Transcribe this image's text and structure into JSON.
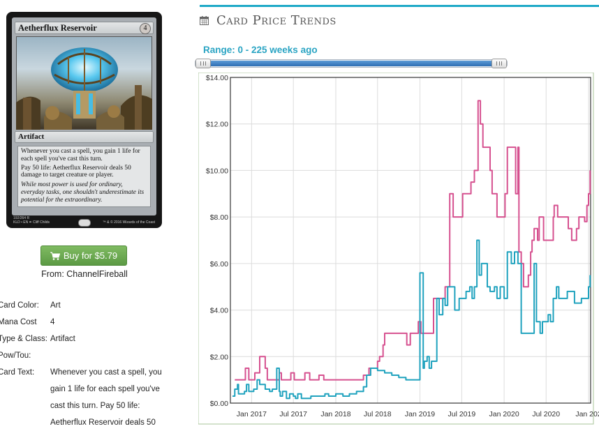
{
  "card": {
    "name": "Aetherflux Reservoir",
    "mana_cost_symbol": "4",
    "type_line": "Artifact",
    "rules_text": [
      "Whenever you cast a spell, you gain 1 life for each spell you've cast this turn.",
      "Pay 50 life: Aetherflux Reservoir deals 50 damage to target creature or player."
    ],
    "flavor_text": "While most power is used for ordinary, everyday tasks, one shouldn't underestimate its potential for the extraordinary.",
    "collector_line_1": "192/264 R",
    "collector_line_2": "KLD • EN ✒ Cliff Childs",
    "copyright": "™ & © 2016 Wizards of the Coast"
  },
  "buy": {
    "label": "Buy for $5.79",
    "from": "From: ChannelFireball",
    "icon": "shopping-cart-icon"
  },
  "info": {
    "card_color_label": "Card Color:",
    "card_color_value": "Art",
    "mana_cost_label": "Mana Cost",
    "mana_cost_value": "4",
    "type_class_label": "Type & Class:",
    "type_class_value": "Artifact",
    "pow_tou_label": "Pow/Tou:",
    "pow_tou_value": "",
    "card_text_label": "Card Text:",
    "card_text_value": "Whenever you cast a spell, you gain 1 life for each spell you've cast this turn. Pay 50 life: Aetherflux Reservoir deals 50"
  },
  "panel": {
    "title": "Card Price Trends",
    "title_icon": "calendar-icon",
    "range_label": "Range: 0 - 225 weeks ago",
    "accent_color": "#1da9c7"
  },
  "slider": {
    "min_weeks": 0,
    "max_weeks": 225,
    "low_fraction": 0.0,
    "high_fraction": 1.0
  },
  "chart_data": {
    "type": "line",
    "title": "",
    "xlabel": "",
    "ylabel": "",
    "ylim": [
      0,
      14
    ],
    "y_ticks": [
      "$0.00",
      "$2.00",
      "$4.00",
      "$6.00",
      "$8.00",
      "$10.00",
      "$12.00",
      "$14.00"
    ],
    "x_tick_labels": [
      "Jan 2017",
      "Jul 2017",
      "Jan 2018",
      "Jul 2018",
      "Jan 2019",
      "Jul 2019",
      "Jan 2020",
      "Jul 2020",
      "Jan 202"
    ],
    "x_range": [
      "2016-10",
      "2021-01"
    ],
    "grid": true,
    "series": [
      {
        "color": "#d6508f",
        "x": [
          "2016-10-20",
          "2016-11-10",
          "2016-11-25",
          "2016-12-05",
          "2016-12-20",
          "2017-01-05",
          "2017-01-15",
          "2017-02-05",
          "2017-02-20",
          "2017-03-01",
          "2017-03-10",
          "2017-03-20",
          "2017-04-05",
          "2017-04-20",
          "2017-05-01",
          "2017-05-10",
          "2017-05-20",
          "2017-06-10",
          "2017-06-20",
          "2017-07-05",
          "2017-07-15",
          "2017-08-10",
          "2017-08-20",
          "2017-09-10",
          "2017-09-15",
          "2017-10-10",
          "2017-10-20",
          "2017-11-10",
          "2017-12-01",
          "2018-01-10",
          "2018-02-10",
          "2018-03-01",
          "2018-04-01",
          "2018-05-01",
          "2018-05-25",
          "2018-06-10",
          "2018-07-01",
          "2018-07-10",
          "2018-07-25",
          "2018-08-01",
          "2018-08-20",
          "2018-09-10",
          "2018-09-20",
          "2018-10-10",
          "2018-10-25",
          "2018-11-05",
          "2018-11-15",
          "2018-11-20",
          "2018-12-05",
          "2018-12-15",
          "2018-12-25",
          "2019-01-05",
          "2019-01-15",
          "2019-02-10",
          "2019-03-01",
          "2019-03-10",
          "2019-03-20",
          "2019-03-25",
          "2019-04-05",
          "2019-04-10",
          "2019-04-20",
          "2019-05-10",
          "2019-05-25",
          "2019-06-10",
          "2019-06-25",
          "2019-07-05",
          "2019-07-25",
          "2019-08-10",
          "2019-08-25",
          "2019-09-01",
          "2019-09-05",
          "2019-09-10",
          "2019-09-20",
          "2019-10-01",
          "2019-10-20",
          "2019-11-01",
          "2019-11-10",
          "2019-12-01",
          "2019-12-10",
          "2019-12-20",
          "2020-01-05",
          "2020-01-15",
          "2020-02-01",
          "2020-02-10",
          "2020-02-20",
          "2020-03-01",
          "2020-03-05",
          "2020-03-15",
          "2020-03-25",
          "2020-04-01",
          "2020-04-15",
          "2020-04-25",
          "2020-05-01",
          "2020-05-10",
          "2020-05-25",
          "2020-06-01",
          "2020-06-10",
          "2020-06-20",
          "2020-07-05",
          "2020-07-15",
          "2020-08-01",
          "2020-08-05",
          "2020-08-20",
          "2020-09-05",
          "2020-09-15",
          "2020-10-01",
          "2020-10-05",
          "2020-10-20",
          "2020-11-01",
          "2020-11-10",
          "2020-11-20",
          "2020-12-01",
          "2020-12-15",
          "2020-12-25",
          "2021-01-01",
          "2021-01-08"
        ],
        "values": [
          1.0,
          1.0,
          1.0,
          1.5,
          1.0,
          1.0,
          1.3,
          2.0,
          2.0,
          1.5,
          1.0,
          1.0,
          1.0,
          1.0,
          1.3,
          1.0,
          1.0,
          1.0,
          1.3,
          1.0,
          1.0,
          1.0,
          1.3,
          1.0,
          1.0,
          1.0,
          1.2,
          1.0,
          1.0,
          1.0,
          1.0,
          1.0,
          1.0,
          1.2,
          1.5,
          1.5,
          1.8,
          2.0,
          2.5,
          3.0,
          3.0,
          3.0,
          3.0,
          3.0,
          3.0,
          2.5,
          2.5,
          3.0,
          3.0,
          3.0,
          3.5,
          3.0,
          3.0,
          3.0,
          4.5,
          4.5,
          4.5,
          4.5,
          4.5,
          4.5,
          5.0,
          9.0,
          8.0,
          8.0,
          8.0,
          9.0,
          9.0,
          9.5,
          10.0,
          10.0,
          10.0,
          13.0,
          12.0,
          11.0,
          11.0,
          10.0,
          9.0,
          8.0,
          8.0,
          8.0,
          9.0,
          11.0,
          11.0,
          11.0,
          9.0,
          11.0,
          6.5,
          6.0,
          5.0,
          5.0,
          5.5,
          6.5,
          7.0,
          7.5,
          7.0,
          8.0,
          8.0,
          7.0,
          7.0,
          7.0,
          8.0,
          8.5,
          8.0,
          8.0,
          8.0,
          8.0,
          7.5,
          7.0,
          7.0,
          7.5,
          8.0,
          8.0,
          7.8,
          8.5,
          9.0,
          10.0
        ]
      },
      {
        "color": "#1fa2be",
        "x": [
          "2016-10-10",
          "2016-10-20",
          "2016-11-01",
          "2016-11-05",
          "2016-11-20",
          "2016-12-01",
          "2016-12-10",
          "2016-12-20",
          "2017-01-01",
          "2017-01-10",
          "2017-01-25",
          "2017-02-05",
          "2017-02-20",
          "2017-03-01",
          "2017-03-10",
          "2017-03-20",
          "2017-04-01",
          "2017-04-10",
          "2017-04-20",
          "2017-05-01",
          "2017-05-05",
          "2017-05-15",
          "2017-06-01",
          "2017-06-15",
          "2017-07-01",
          "2017-07-10",
          "2017-07-20",
          "2017-08-05",
          "2017-08-15",
          "2017-09-01",
          "2017-09-15",
          "2017-10-01",
          "2017-10-15",
          "2017-11-01",
          "2017-11-15",
          "2017-12-01",
          "2017-12-15",
          "2018-01-01",
          "2018-02-01",
          "2018-03-01",
          "2018-04-01",
          "2018-05-01",
          "2018-05-15",
          "2018-06-01",
          "2018-07-01",
          "2018-08-01",
          "2018-09-01",
          "2018-10-01",
          "2018-11-01",
          "2018-12-01",
          "2019-01-01",
          "2019-01-15",
          "2019-01-20",
          "2019-02-01",
          "2019-02-10",
          "2019-02-20",
          "2019-03-01",
          "2019-03-15",
          "2019-03-25",
          "2019-04-10",
          "2019-04-20",
          "2019-05-01",
          "2019-05-20",
          "2019-06-01",
          "2019-06-20",
          "2019-07-05",
          "2019-07-20",
          "2019-08-05",
          "2019-08-15",
          "2019-08-25",
          "2019-09-01",
          "2019-09-05",
          "2019-09-15",
          "2019-09-25",
          "2019-10-05",
          "2019-10-20",
          "2019-11-01",
          "2019-11-20",
          "2019-12-01",
          "2019-12-15",
          "2020-01-01",
          "2020-01-15",
          "2020-02-01",
          "2020-02-15",
          "2020-03-01",
          "2020-03-05",
          "2020-03-15",
          "2020-04-01",
          "2020-04-10",
          "2020-04-20",
          "2020-05-01",
          "2020-05-10",
          "2020-05-20",
          "2020-06-01",
          "2020-06-05",
          "2020-06-15",
          "2020-07-01",
          "2020-07-10",
          "2020-07-20",
          "2020-08-01",
          "2020-08-15",
          "2020-08-25",
          "2020-09-10",
          "2020-09-20",
          "2020-10-01",
          "2020-10-15",
          "2020-11-01",
          "2020-11-15",
          "2020-12-01",
          "2020-12-15",
          "2021-01-01",
          "2021-01-08"
        ],
        "values": [
          0.3,
          0.6,
          0.8,
          0.4,
          0.4,
          0.5,
          0.8,
          0.5,
          0.5,
          0.6,
          1.0,
          0.8,
          0.8,
          0.6,
          0.6,
          0.5,
          0.6,
          0.6,
          1.5,
          0.5,
          0.3,
          0.5,
          0.2,
          0.4,
          0.3,
          0.2,
          0.4,
          0.2,
          0.2,
          0.2,
          0.3,
          0.3,
          0.3,
          0.3,
          0.4,
          0.3,
          0.3,
          0.4,
          0.3,
          0.4,
          0.5,
          0.7,
          1.2,
          1.5,
          1.4,
          1.3,
          1.2,
          1.1,
          1.0,
          1.0,
          5.6,
          1.5,
          1.8,
          2.0,
          1.5,
          1.8,
          1.8,
          4.5,
          3.8,
          4.5,
          4.2,
          5.0,
          5.0,
          4.0,
          4.5,
          4.5,
          4.8,
          5.0,
          4.5,
          5.0,
          5.0,
          7.0,
          5.5,
          6.0,
          6.0,
          5.0,
          4.8,
          5.0,
          4.5,
          5.0,
          4.5,
          6.5,
          6.0,
          6.5,
          6.0,
          6.0,
          3.0,
          3.0,
          3.0,
          3.0,
          3.0,
          6.0,
          3.5,
          3.5,
          3.0,
          3.5,
          3.5,
          3.8,
          3.5,
          4.5,
          5.0,
          4.5,
          4.5,
          4.5,
          4.8,
          4.8,
          4.3,
          4.3,
          4.5,
          4.5,
          5.0,
          5.5
        ]
      }
    ]
  }
}
